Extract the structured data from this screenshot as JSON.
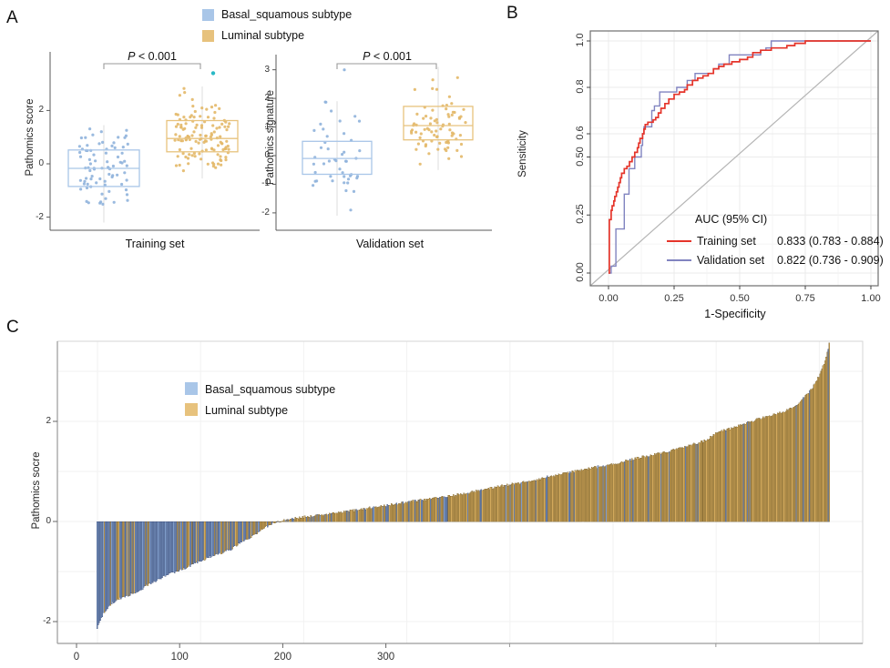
{
  "figure": {
    "panel_a_label": "A",
    "panel_b_label": "B",
    "panel_c_label": "C"
  },
  "colors": {
    "basal_legend": "#a9c6e8",
    "luminal_legend": "#e7c27d",
    "basal_point": "#8fb3dc",
    "luminal_point": "#e3b868",
    "outlier_teal": "#29b8c5",
    "training_line": "#e5342a",
    "validation_line": "#8184c0",
    "diagonal": "#b5b5b5",
    "grid": "#ebebeb",
    "bar_basal_fill": "#7f9cc9",
    "bar_basal_stroke": "#31406b",
    "bar_luminal_fill": "#d2a95c",
    "bar_luminal_stroke": "#6d5826"
  },
  "chart_data": [
    {
      "id": "A",
      "type": "scatter-box",
      "legend": [
        {
          "label": "Basal_squamous subtype",
          "color": "#a9c6e8"
        },
        {
          "label": "Luminal subtype",
          "color": "#e7c27d"
        }
      ],
      "p_prefix": "P",
      "p_suffix": " < 0.001",
      "subplots": [
        {
          "xlabel": "Training set",
          "ylabel": "Pathomics score",
          "yticks": [
            -2,
            0,
            2
          ],
          "ylim": [
            -2.45,
            3.6
          ],
          "groups": [
            {
              "subtype": "Basal_squamous",
              "n": 80,
              "mean": -0.15,
              "sd": 0.82,
              "min": -2.2,
              "max": 1.45,
              "box": {
                "q1": -0.85,
                "median": -0.17,
                "q3": 0.52
              }
            },
            {
              "subtype": "Luminal",
              "n": 125,
              "mean": 1.0,
              "sd": 0.72,
              "min": -0.55,
              "max": 2.9,
              "box": {
                "q1": 0.45,
                "median": 0.95,
                "q3": 1.62
              },
              "outlier": 3.4
            }
          ]
        },
        {
          "xlabel": "Validation set",
          "ylabel": "Pathomics signature",
          "yticks": [
            3,
            2,
            1,
            0,
            -1,
            -2
          ],
          "ylim": [
            -2.45,
            3.4
          ],
          "groups": [
            {
              "subtype": "Basal_squamous",
              "n": 46,
              "mean": -0.1,
              "sd": 0.85,
              "min": -2.1,
              "max": 1.9,
              "box": {
                "q1": -0.65,
                "median": -0.1,
                "q3": 0.5
              },
              "extra_points": [
                3.0
              ]
            },
            {
              "subtype": "Luminal",
              "n": 78,
              "mean": 1.1,
              "sd": 0.75,
              "min": -0.5,
              "max": 3.1,
              "box": {
                "q1": 0.55,
                "median": 1.05,
                "q3": 1.72
              }
            }
          ]
        }
      ]
    },
    {
      "id": "B",
      "type": "line",
      "xlabel": "1-Specificity",
      "ylabel": "Sensiticity",
      "xlim": [
        0,
        1
      ],
      "ylim": [
        0,
        1
      ],
      "xticks": [
        "0.00",
        "0.25",
        "0.50",
        "0.75",
        "1.00"
      ],
      "yticks": [
        {
          "v": 0.0,
          "label": "0.00"
        },
        {
          "v": 0.25,
          "label": "0.25"
        },
        {
          "v": 0.5,
          "label": "0.50"
        },
        {
          "v": 0.6,
          "label": "0.6"
        },
        {
          "v": 0.8,
          "label": "0.8"
        },
        {
          "v": 1.0,
          "label": "1.0"
        }
      ],
      "legend_header": "AUC (95% CI)",
      "diagonal": true,
      "series": [
        {
          "name": "Training set",
          "auc": "0.833 (0.783 - 0.884)",
          "color": "#e5342a",
          "points": [
            [
              0,
              0
            ],
            [
              0.003,
              0.23
            ],
            [
              0.01,
              0.27
            ],
            [
              0.014,
              0.29
            ],
            [
              0.02,
              0.31
            ],
            [
              0.024,
              0.33
            ],
            [
              0.03,
              0.35
            ],
            [
              0.035,
              0.37
            ],
            [
              0.04,
              0.39
            ],
            [
              0.045,
              0.41
            ],
            [
              0.05,
              0.43
            ],
            [
              0.06,
              0.45
            ],
            [
              0.07,
              0.46
            ],
            [
              0.08,
              0.48
            ],
            [
              0.09,
              0.5
            ],
            [
              0.1,
              0.52
            ],
            [
              0.11,
              0.54
            ],
            [
              0.115,
              0.56
            ],
            [
              0.12,
              0.58
            ],
            [
              0.13,
              0.6
            ],
            [
              0.135,
              0.62
            ],
            [
              0.14,
              0.64
            ],
            [
              0.15,
              0.65
            ],
            [
              0.17,
              0.66
            ],
            [
              0.18,
              0.67
            ],
            [
              0.19,
              0.69
            ],
            [
              0.2,
              0.71
            ],
            [
              0.215,
              0.73
            ],
            [
              0.23,
              0.75
            ],
            [
              0.25,
              0.77
            ],
            [
              0.27,
              0.78
            ],
            [
              0.29,
              0.79
            ],
            [
              0.3,
              0.81
            ],
            [
              0.32,
              0.83
            ],
            [
              0.34,
              0.84
            ],
            [
              0.36,
              0.85
            ],
            [
              0.38,
              0.86
            ],
            [
              0.4,
              0.88
            ],
            [
              0.42,
              0.89
            ],
            [
              0.44,
              0.9
            ],
            [
              0.47,
              0.91
            ],
            [
              0.5,
              0.92
            ],
            [
              0.53,
              0.93
            ],
            [
              0.55,
              0.95
            ],
            [
              0.58,
              0.96
            ],
            [
              0.62,
              0.97
            ],
            [
              0.66,
              0.97
            ],
            [
              0.68,
              0.98
            ],
            [
              0.71,
              0.99
            ],
            [
              0.75,
              1
            ],
            [
              1,
              1
            ]
          ]
        },
        {
          "name": "Validation set",
          "auc": "0.822 (0.736 - 0.909)",
          "color": "#8184c0",
          "points": [
            [
              0,
              0
            ],
            [
              0.01,
              0.03
            ],
            [
              0.028,
              0.03
            ],
            [
              0.028,
              0.19
            ],
            [
              0.06,
              0.19
            ],
            [
              0.06,
              0.34
            ],
            [
              0.078,
              0.34
            ],
            [
              0.078,
              0.45
            ],
            [
              0.1,
              0.45
            ],
            [
              0.1,
              0.5
            ],
            [
              0.125,
              0.5
            ],
            [
              0.125,
              0.55
            ],
            [
              0.13,
              0.6
            ],
            [
              0.135,
              0.63
            ],
            [
              0.165,
              0.63
            ],
            [
              0.165,
              0.7
            ],
            [
              0.175,
              0.72
            ],
            [
              0.195,
              0.72
            ],
            [
              0.195,
              0.78
            ],
            [
              0.25,
              0.78
            ],
            [
              0.26,
              0.8
            ],
            [
              0.3,
              0.8
            ],
            [
              0.3,
              0.83
            ],
            [
              0.33,
              0.83
            ],
            [
              0.33,
              0.86
            ],
            [
              0.395,
              0.86
            ],
            [
              0.4,
              0.88
            ],
            [
              0.42,
              0.9
            ],
            [
              0.46,
              0.9
            ],
            [
              0.46,
              0.94
            ],
            [
              0.56,
              0.94
            ],
            [
              0.58,
              0.96
            ],
            [
              0.6,
              0.97
            ],
            [
              0.62,
              1
            ],
            [
              1,
              1
            ]
          ]
        }
      ]
    },
    {
      "id": "C",
      "type": "bar-waterfall",
      "ylabel": "Pathomics socre",
      "xticks": [
        0,
        100,
        200,
        300
      ],
      "unlabeled_xticks": [
        420,
        620
      ],
      "yticks": [
        2,
        0,
        -2
      ],
      "ylim": [
        -2.45,
        3.75
      ],
      "n_bars": 710,
      "x_start": 20,
      "x_end": 730,
      "legend": [
        {
          "label": "Basal_squamous subtype",
          "color": "#a9c6e8"
        },
        {
          "label": "Luminal subtype",
          "color": "#e7c27d"
        }
      ],
      "curve": [
        [
          20,
          -2.12
        ],
        [
          23,
          -1.97
        ],
        [
          26,
          -1.84
        ],
        [
          30,
          -1.72
        ],
        [
          35,
          -1.62
        ],
        [
          42,
          -1.53
        ],
        [
          50,
          -1.47
        ],
        [
          58,
          -1.42
        ],
        [
          68,
          -1.28
        ],
        [
          80,
          -1.15
        ],
        [
          92,
          -1.03
        ],
        [
          103,
          -0.95
        ],
        [
          115,
          -0.84
        ],
        [
          128,
          -0.72
        ],
        [
          140,
          -0.64
        ],
        [
          150,
          -0.55
        ],
        [
          160,
          -0.42
        ],
        [
          170,
          -0.3
        ],
        [
          180,
          -0.16
        ],
        [
          191,
          -0.02
        ],
        [
          200,
          0.02
        ],
        [
          215,
          0.07
        ],
        [
          235,
          0.12
        ],
        [
          255,
          0.18
        ],
        [
          275,
          0.24
        ],
        [
          300,
          0.32
        ],
        [
          325,
          0.4
        ],
        [
          350,
          0.47
        ],
        [
          375,
          0.55
        ],
        [
          400,
          0.66
        ],
        [
          421,
          0.74
        ],
        [
          445,
          0.83
        ],
        [
          470,
          0.95
        ],
        [
          495,
          1.05
        ],
        [
          521,
          1.15
        ],
        [
          545,
          1.27
        ],
        [
          570,
          1.38
        ],
        [
          592,
          1.5
        ],
        [
          610,
          1.62
        ],
        [
          622,
          1.78
        ],
        [
          638,
          1.88
        ],
        [
          655,
          2.0
        ],
        [
          670,
          2.1
        ],
        [
          687,
          2.2
        ],
        [
          698,
          2.32
        ],
        [
          707,
          2.5
        ],
        [
          714,
          2.68
        ],
        [
          720,
          2.9
        ],
        [
          725,
          3.15
        ],
        [
          728,
          3.38
        ],
        [
          730,
          3.55
        ]
      ],
      "blue_probability": [
        [
          -2.2,
          0.93
        ],
        [
          -1.2,
          0.8
        ],
        [
          -0.6,
          0.62
        ],
        [
          -0.2,
          0.45
        ],
        [
          0.0,
          0.3
        ],
        [
          0.3,
          0.18
        ],
        [
          0.8,
          0.1
        ],
        [
          1.5,
          0.08
        ],
        [
          3.6,
          0.05
        ]
      ]
    }
  ]
}
